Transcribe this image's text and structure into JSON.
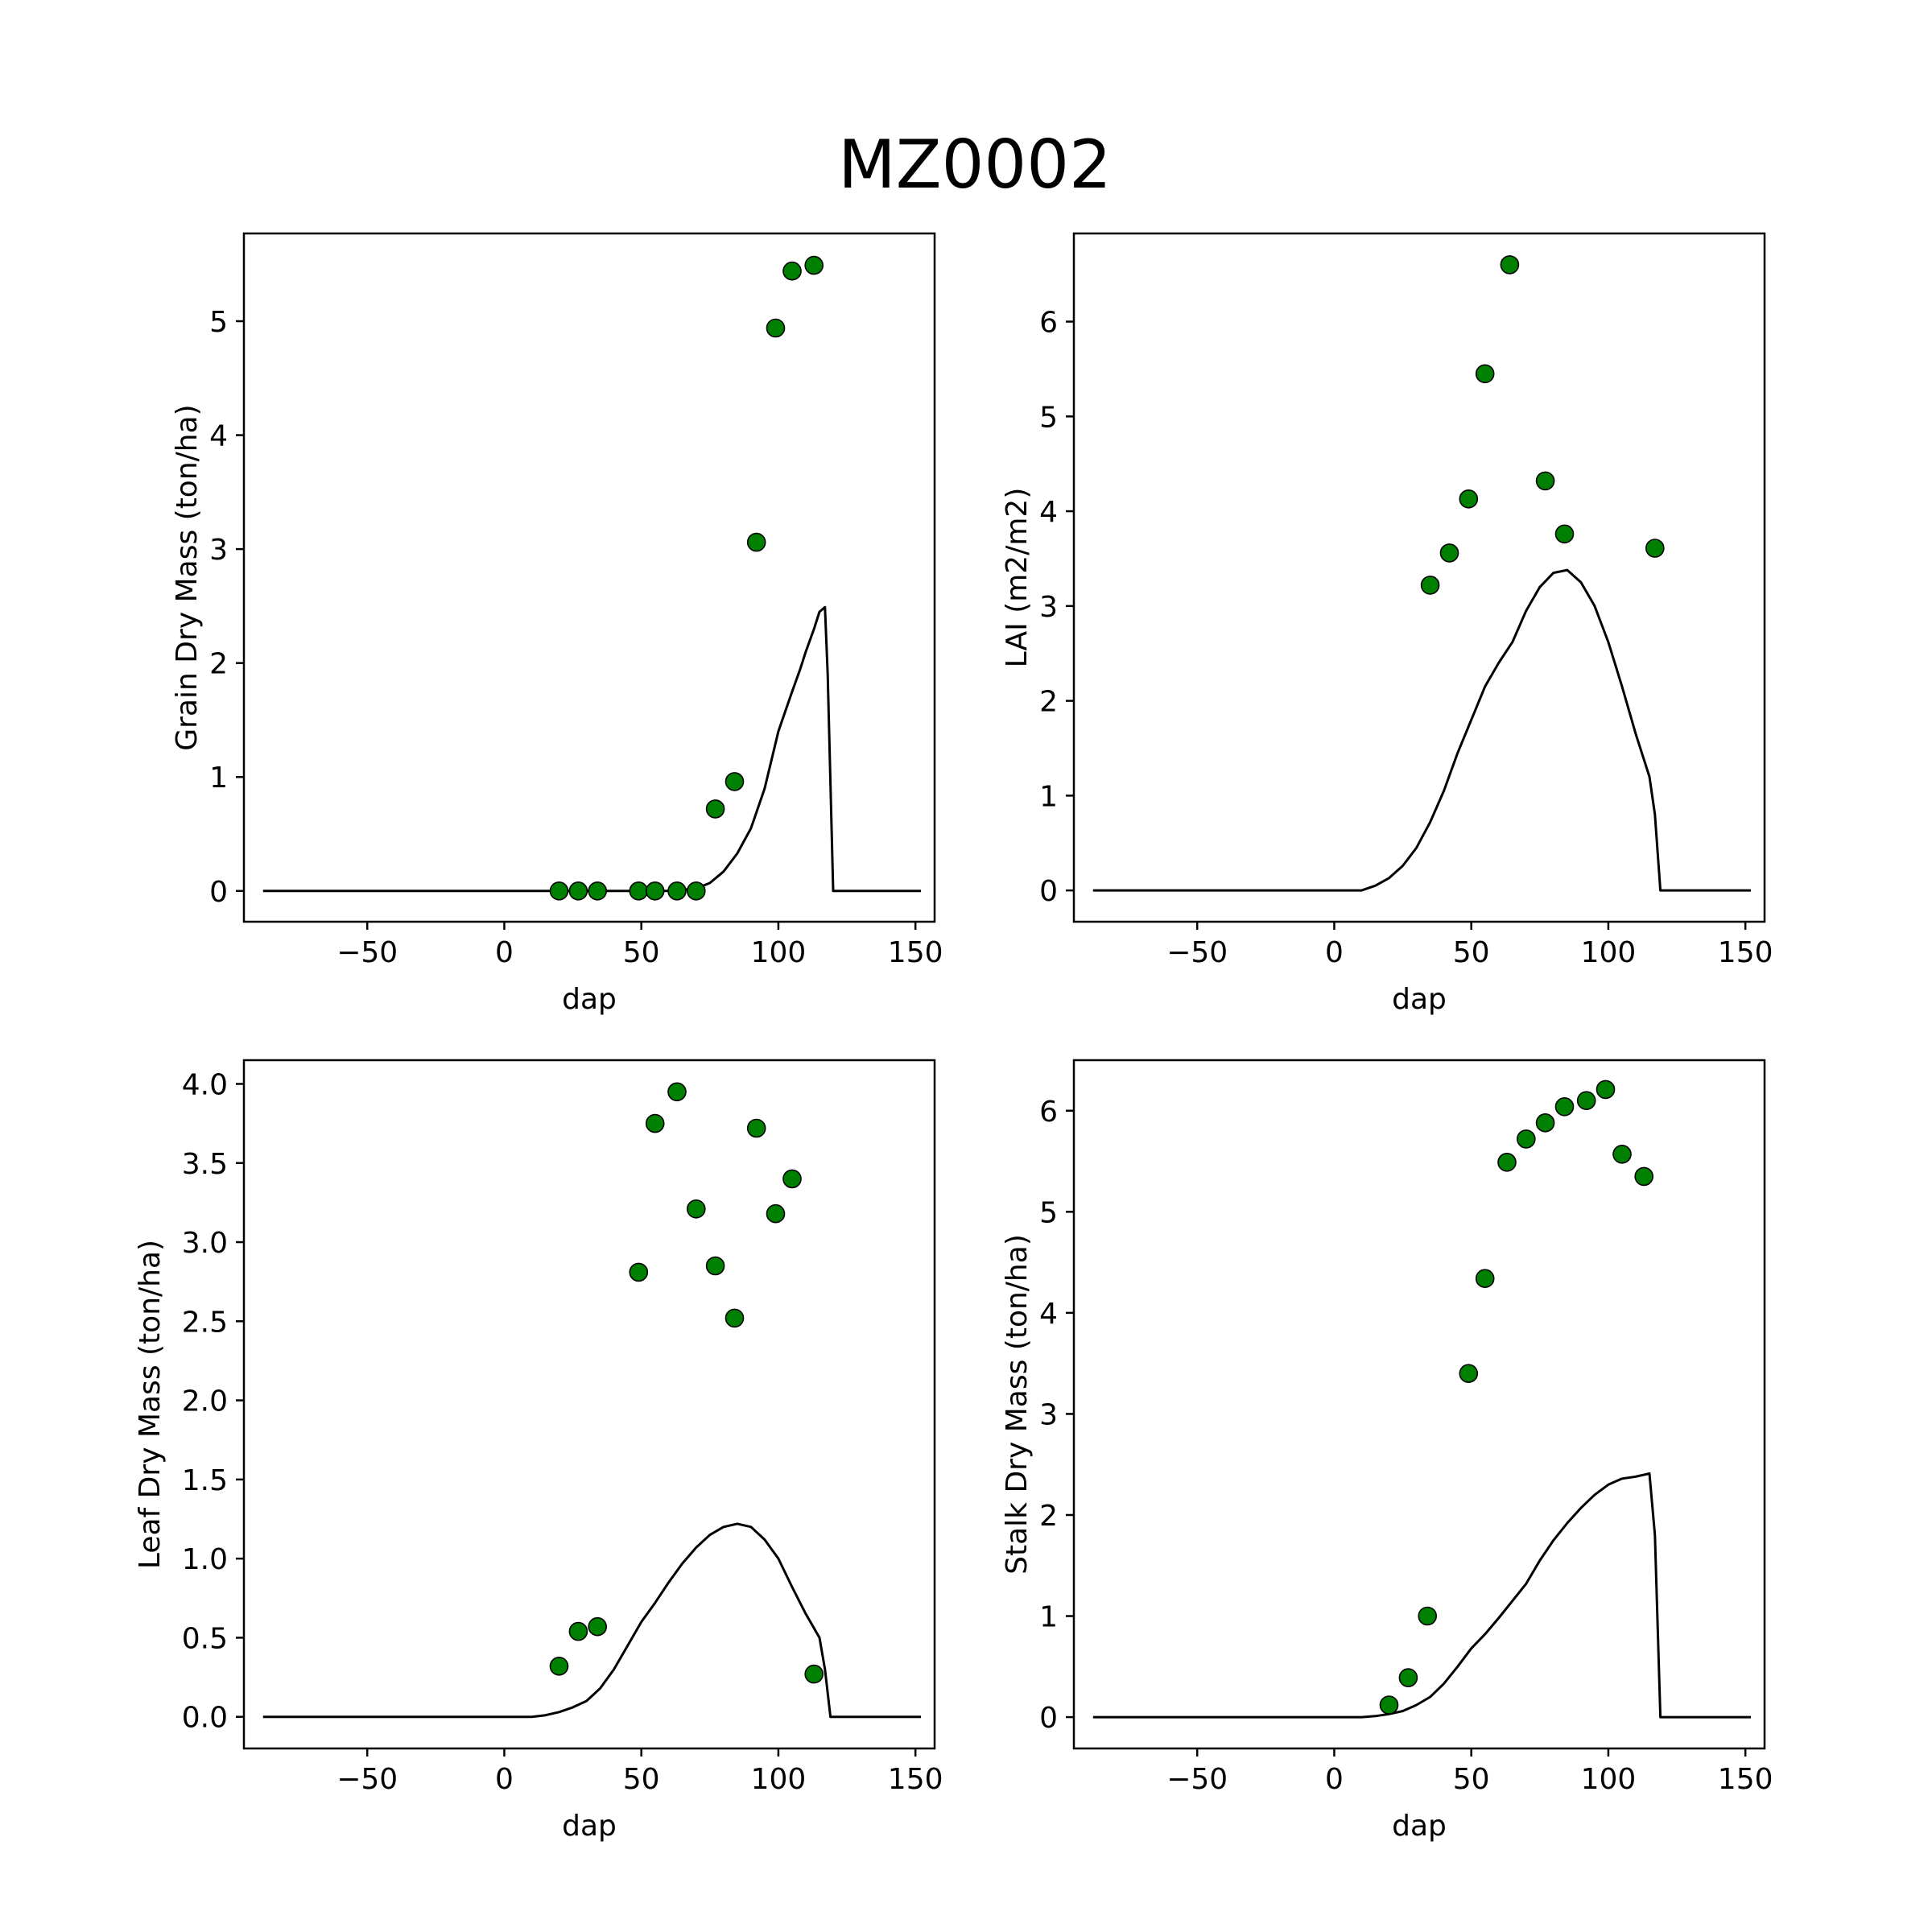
{
  "figure": {
    "title": "MZ0002"
  },
  "colors": {
    "observed": "#008000",
    "simulated": "#000000"
  },
  "chart_data": [
    {
      "type": "scatter",
      "xlabel": "dap",
      "ylabel": "Grain Dry Mass (ton/ha)",
      "xlim": [
        -95,
        157
      ],
      "ylim": [
        -0.27,
        5.77
      ],
      "xticks": [
        -50,
        0,
        50,
        100,
        150
      ],
      "xtick_labels": [
        "−50",
        "0",
        "50",
        "100",
        "150"
      ],
      "yticks": [
        0,
        1,
        2,
        3,
        4,
        5
      ],
      "ytick_labels": [
        "0",
        "1",
        "2",
        "3",
        "4",
        "5"
      ],
      "series": [
        {
          "kind": "line",
          "x": [
            -88,
            0,
            50,
            60,
            70,
            75,
            80,
            85,
            90,
            95,
            100,
            105,
            108,
            110,
            113,
            115,
            117,
            118,
            120,
            150,
            152
          ],
          "y": [
            0,
            0,
            0,
            0,
            0.02,
            0.07,
            0.17,
            0.33,
            0.55,
            0.9,
            1.4,
            1.75,
            1.95,
            2.1,
            2.3,
            2.45,
            2.49,
            1.9,
            0,
            0,
            0
          ]
        },
        {
          "kind": "scatter",
          "x": [
            20,
            27,
            34,
            49,
            55,
            63,
            70,
            77,
            84,
            92,
            99,
            105,
            113
          ],
          "y": [
            0,
            0,
            0,
            0,
            0,
            0,
            0,
            0.72,
            0.96,
            3.06,
            4.94,
            5.44,
            5.49
          ]
        }
      ]
    },
    {
      "type": "scatter",
      "xlabel": "dap",
      "ylabel": "LAI (m2/m2)",
      "xlim": [
        -95,
        157
      ],
      "ylim": [
        -0.33,
        6.93
      ],
      "xticks": [
        -50,
        0,
        50,
        100,
        150
      ],
      "xtick_labels": [
        "−50",
        "0",
        "50",
        "100",
        "150"
      ],
      "yticks": [
        0,
        1,
        2,
        3,
        4,
        5,
        6
      ],
      "ytick_labels": [
        "0",
        "1",
        "2",
        "3",
        "4",
        "5",
        "6"
      ],
      "series": [
        {
          "kind": "line",
          "x": [
            -88,
            10,
            15,
            20,
            25,
            30,
            35,
            40,
            45,
            50,
            55,
            60,
            65,
            70,
            75,
            80,
            85,
            90,
            95,
            100,
            105,
            110,
            115,
            117,
            119,
            150,
            152
          ],
          "y": [
            0,
            0,
            0.05,
            0.13,
            0.26,
            0.45,
            0.72,
            1.05,
            1.45,
            1.8,
            2.15,
            2.4,
            2.62,
            2.95,
            3.2,
            3.35,
            3.38,
            3.25,
            3.0,
            2.62,
            2.15,
            1.65,
            1.2,
            0.8,
            0,
            0,
            0
          ]
        },
        {
          "kind": "scatter",
          "x": [
            35,
            42,
            49,
            55,
            64,
            77,
            84,
            117
          ],
          "y": [
            3.22,
            3.56,
            4.13,
            5.45,
            6.6,
            4.32,
            3.76,
            3.61
          ]
        }
      ]
    },
    {
      "type": "scatter",
      "xlabel": "dap",
      "ylabel": "Leaf Dry Mass (ton/ha)",
      "xlim": [
        -95,
        157
      ],
      "ylim": [
        -0.2,
        4.15
      ],
      "xticks": [
        -50,
        0,
        50,
        100,
        150
      ],
      "xtick_labels": [
        "−50",
        "0",
        "50",
        "100",
        "150"
      ],
      "yticks": [
        0,
        0.5,
        1,
        1.5,
        2,
        2.5,
        3,
        3.5,
        4
      ],
      "ytick_labels": [
        "0.0",
        "0.5",
        "1.0",
        "1.5",
        "2.0",
        "2.5",
        "3.0",
        "3.5",
        "4.0"
      ],
      "series": [
        {
          "kind": "line",
          "x": [
            -88,
            10,
            15,
            20,
            25,
            30,
            35,
            40,
            45,
            50,
            55,
            60,
            65,
            70,
            75,
            80,
            85,
            90,
            95,
            100,
            105,
            110,
            115,
            117,
            119,
            150,
            152
          ],
          "y": [
            0,
            0,
            0.01,
            0.03,
            0.06,
            0.1,
            0.18,
            0.3,
            0.45,
            0.6,
            0.72,
            0.85,
            0.97,
            1.07,
            1.15,
            1.2,
            1.22,
            1.2,
            1.12,
            1.0,
            0.82,
            0.65,
            0.5,
            0.3,
            0,
            0,
            0
          ]
        },
        {
          "kind": "scatter",
          "x": [
            20,
            27,
            34,
            49,
            55,
            63,
            70,
            77,
            84,
            92,
            99,
            105,
            113
          ],
          "y": [
            0.32,
            0.54,
            0.57,
            2.81,
            3.75,
            3.95,
            3.21,
            2.85,
            2.52,
            3.72,
            3.18,
            3.4,
            0.27
          ]
        }
      ]
    },
    {
      "type": "scatter",
      "xlabel": "dap",
      "ylabel": "Stalk Dry Mass (ton/ha)",
      "xlim": [
        -95,
        157
      ],
      "ylim": [
        -0.31,
        6.5
      ],
      "xticks": [
        -50,
        0,
        50,
        100,
        150
      ],
      "xtick_labels": [
        "−50",
        "0",
        "50",
        "100",
        "150"
      ],
      "yticks": [
        0,
        1,
        2,
        3,
        4,
        5,
        6
      ],
      "ytick_labels": [
        "0",
        "1",
        "2",
        "3",
        "4",
        "5",
        "6"
      ],
      "series": [
        {
          "kind": "line",
          "x": [
            -88,
            10,
            15,
            20,
            25,
            30,
            35,
            40,
            45,
            50,
            55,
            60,
            65,
            70,
            75,
            80,
            85,
            90,
            95,
            100,
            105,
            110,
            115,
            117,
            119,
            150,
            152
          ],
          "y": [
            0,
            0,
            0.01,
            0.03,
            0.06,
            0.12,
            0.2,
            0.33,
            0.5,
            0.68,
            0.82,
            0.98,
            1.15,
            1.32,
            1.55,
            1.75,
            1.92,
            2.07,
            2.2,
            2.3,
            2.36,
            2.38,
            2.41,
            1.8,
            0,
            0,
            0
          ]
        },
        {
          "kind": "scatter",
          "x": [
            20,
            27,
            34,
            49,
            55,
            63,
            70,
            77,
            84,
            92,
            99,
            105,
            113
          ],
          "y": [
            0.12,
            0.39,
            1.0,
            3.4,
            4.34,
            5.49,
            5.72,
            5.88,
            6.04,
            6.1,
            6.21,
            5.57,
            5.35
          ]
        }
      ]
    }
  ]
}
